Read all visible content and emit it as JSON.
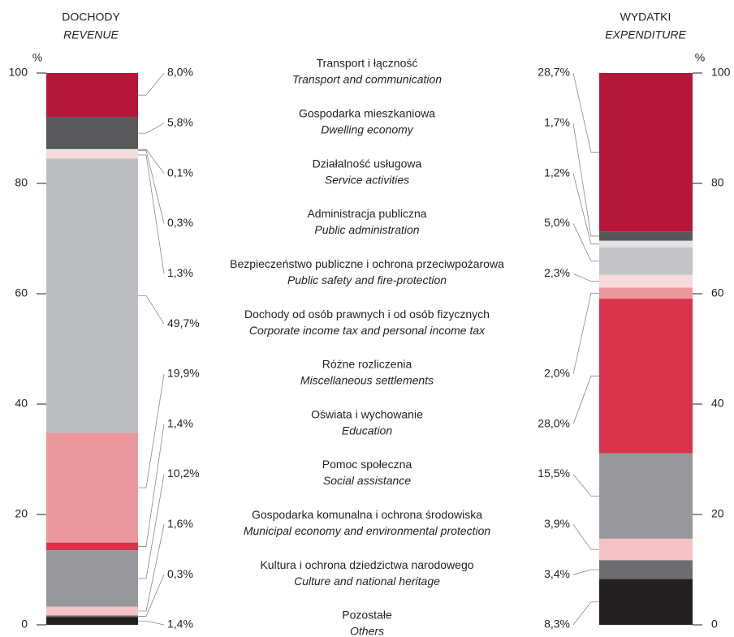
{
  "chart_data": {
    "type": "stacked-bar",
    "ylim": [
      0,
      100
    ],
    "yticks": [
      0,
      20,
      40,
      60,
      80,
      100
    ],
    "y_unit": "%",
    "categories": [
      "Transport i łączność",
      "Gospodarka mieszkaniowa",
      "Działalność usługowa",
      "Administracja publiczna",
      "Bezpieczeństwo publiczne i ochrona przeciwpożarowa",
      "Dochody od osób prawnych i od osób fizycznych",
      "Różne rozliczenia",
      "Oświata i wychowanie",
      "Pomoc społeczna",
      "Gospodarka komunalna i ochrona środowiska",
      "Kultura i ochrona dziedzictwa narodowego",
      "Pozostałe"
    ],
    "categories_en": [
      "Transport and communication",
      "Dwelling economy",
      "Service activities",
      "Public administration",
      "Public safety and fire-protection",
      "Corporate income tax and personal income tax",
      "Miscellaneous settlements",
      "Education",
      "Social assistance",
      "Municipal economy and environmental protection",
      "Culture and national heritage",
      "Others"
    ],
    "series": [
      {
        "name": "DOCHODY",
        "name_en": "REVENUE",
        "values": [
          8.0,
          5.8,
          0.1,
          0.3,
          1.3,
          49.7,
          19.9,
          1.4,
          10.2,
          1.6,
          0.3,
          1.4
        ],
        "value_labels": [
          "8,0%",
          "5,8%",
          "0,1%",
          "0,3%",
          "1,3%",
          "49,7%",
          "19,9%",
          "1,4%",
          "10,2%",
          "1,6%",
          "0,3%",
          "1,4%"
        ],
        "colors": [
          "#b5173b",
          "#58585a",
          "#f2f2f2",
          "#e6e6e8",
          "#f6dada",
          "#bdbec2",
          "#ec979e",
          "#d6344a",
          "#98989c",
          "#f5c2c6",
          "#6d6d70",
          "#231f20"
        ]
      },
      {
        "name": "WYDATKI",
        "name_en": "EXPENDITURE",
        "values": [
          28.7,
          1.7,
          1.2,
          5.0,
          2.3,
          null,
          2.0,
          28.0,
          15.5,
          3.9,
          3.4,
          8.3
        ],
        "value_labels": [
          "28,7%",
          "1,7%",
          "1,2%",
          "5,0%",
          "2,3%",
          null,
          "2,0%",
          "28,0%",
          "15,5%",
          "3,9%",
          "3,4%",
          "8,3%"
        ],
        "colors": [
          "#b5173b",
          "#58585a",
          "#e4e4e6",
          "#c4c4c8",
          "#f6dada",
          null,
          "#ec979e",
          "#d6344a",
          "#98989c",
          "#f5c2c6",
          "#6d6d70",
          "#231f20"
        ]
      }
    ]
  }
}
